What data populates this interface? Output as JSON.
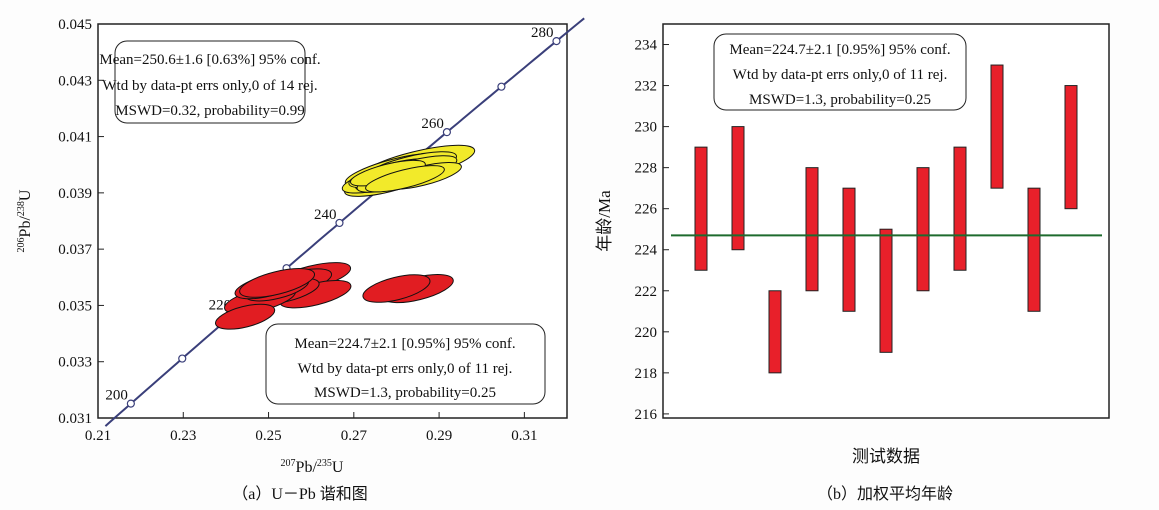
{
  "chart_data": [
    {
      "type": "scatter",
      "subtype": "concordia",
      "caption": "（a）U－Pb 谐和图",
      "xlabel": {
        "sup1": "207",
        "base1": "Pb/",
        "sup2": "235",
        "base2": "U"
      },
      "ylabel": {
        "sup1": "206",
        "base1": "Pb/",
        "sup2": "238",
        "base2": "U"
      },
      "xlim": [
        0.21,
        0.32
      ],
      "ylim": [
        0.031,
        0.045
      ],
      "xticks": [
        "0.21",
        "0.23",
        "0.25",
        "0.27",
        "0.29",
        "0.31"
      ],
      "yticks": [
        "0.031",
        "0.033",
        "0.035",
        "0.037",
        "0.039",
        "0.041",
        "0.043",
        "0.045"
      ],
      "concordia_labels": [
        "200",
        "220",
        "240",
        "260",
        "280"
      ],
      "concordia_range_ma": [
        195,
        285
      ],
      "colors": {
        "concordia": "#3a3f7a",
        "group1": "#f2ea2a",
        "group2": "#e11d22"
      },
      "group1_ellipses": [
        {
          "x": 0.2845,
          "y": 0.04,
          "sx": 0.015,
          "sy": 0.00058
        },
        {
          "x": 0.28,
          "y": 0.0398,
          "sx": 0.013,
          "sy": 0.00052
        },
        {
          "x": 0.279,
          "y": 0.0396,
          "sx": 0.012,
          "sy": 0.0005
        },
        {
          "x": 0.282,
          "y": 0.0397,
          "sx": 0.0125,
          "sy": 0.0005
        },
        {
          "x": 0.278,
          "y": 0.0394,
          "sx": 0.011,
          "sy": 0.00046
        },
        {
          "x": 0.283,
          "y": 0.0399,
          "sx": 0.012,
          "sy": 0.00048
        },
        {
          "x": 0.277,
          "y": 0.0395,
          "sx": 0.0105,
          "sy": 0.00045
        },
        {
          "x": 0.281,
          "y": 0.0396,
          "sx": 0.0115,
          "sy": 0.00046
        },
        {
          "x": 0.279,
          "y": 0.0397,
          "sx": 0.011,
          "sy": 0.00044
        },
        {
          "x": 0.284,
          "y": 0.0398,
          "sx": 0.011,
          "sy": 0.00045
        },
        {
          "x": 0.28,
          "y": 0.0395,
          "sx": 0.01,
          "sy": 0.00042
        },
        {
          "x": 0.286,
          "y": 0.0396,
          "sx": 0.01,
          "sy": 0.00042
        },
        {
          "x": 0.278,
          "y": 0.0397,
          "sx": 0.0095,
          "sy": 0.0004
        },
        {
          "x": 0.282,
          "y": 0.0395,
          "sx": 0.01,
          "sy": 0.0004
        }
      ],
      "group2_ellipses": [
        {
          "x": 0.26,
          "y": 0.036,
          "sx": 0.01,
          "sy": 0.0005
        },
        {
          "x": 0.256,
          "y": 0.0358,
          "sx": 0.0095,
          "sy": 0.00048
        },
        {
          "x": 0.261,
          "y": 0.0354,
          "sx": 0.009,
          "sy": 0.00048
        },
        {
          "x": 0.254,
          "y": 0.0355,
          "sx": 0.0085,
          "sy": 0.00045
        },
        {
          "x": 0.248,
          "y": 0.0352,
          "sx": 0.009,
          "sy": 0.00048
        },
        {
          "x": 0.252,
          "y": 0.0356,
          "sx": 0.008,
          "sy": 0.00044
        },
        {
          "x": 0.25,
          "y": 0.0357,
          "sx": 0.0085,
          "sy": 0.00046
        },
        {
          "x": 0.285,
          "y": 0.0356,
          "sx": 0.009,
          "sy": 0.0005
        },
        {
          "x": 0.28,
          "y": 0.0356,
          "sx": 0.0085,
          "sy": 0.0005
        },
        {
          "x": 0.2445,
          "y": 0.0346,
          "sx": 0.0075,
          "sy": 0.00046
        },
        {
          "x": 0.252,
          "y": 0.0358,
          "sx": 0.0095,
          "sy": 0.0005
        }
      ],
      "annotations": [
        [
          "Mean=250.6±1.6 [0.63%] 95% conf.",
          "Wtd by data-pt errs only,0 of 14 rej.",
          "MSWD=0.32, probability=0.99"
        ],
        [
          "Mean=224.7±2.1 [0.95%] 95% conf.",
          "Wtd by data-pt errs only,0 of 11 rej.",
          "MSWD=1.3, probability=0.25"
        ]
      ]
    },
    {
      "type": "bar",
      "subtype": "weighted-mean-error-bars",
      "caption": "（b）加权平均年龄",
      "xlabel": "测试数据",
      "ylabel": "年龄/Ma",
      "ylim": [
        215.8,
        235
      ],
      "yticks": [
        "216",
        "218",
        "220",
        "222",
        "224",
        "226",
        "228",
        "230",
        "232",
        "234"
      ],
      "mean": 224.7,
      "colors": {
        "bar": "#e8202a",
        "mean_line": "#1e6b2e"
      },
      "bars": [
        [
          223,
          229
        ],
        [
          224,
          230
        ],
        [
          218,
          222
        ],
        [
          222,
          228
        ],
        [
          221,
          227
        ],
        [
          219,
          225
        ],
        [
          222,
          228
        ],
        [
          223,
          229
        ],
        [
          227,
          233
        ],
        [
          221,
          227
        ],
        [
          226,
          232
        ]
      ],
      "annotation": [
        "Mean=224.7±2.1 [0.95%] 95% conf.",
        "Wtd by data-pt errs only,0 of 11 rej.",
        "MSWD=1.3, probability=0.25"
      ]
    }
  ]
}
